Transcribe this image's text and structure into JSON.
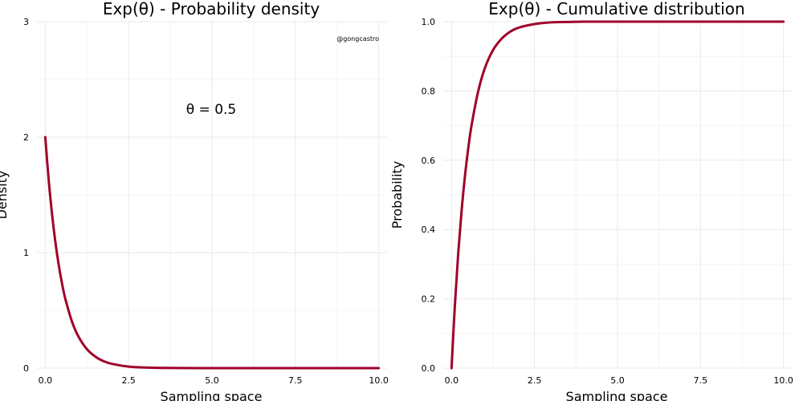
{
  "chart_data": [
    {
      "type": "line",
      "title": "Exp(θ) - Probability density",
      "xlabel": "Sampling space",
      "ylabel": "Density",
      "xlim": [
        -0.25,
        10.25
      ],
      "ylim": [
        0,
        3
      ],
      "xticks": [
        "0.0",
        "2.5",
        "5.0",
        "7.5",
        "10.0"
      ],
      "xtick_values": [
        0,
        2.5,
        5,
        7.5,
        10
      ],
      "yticks": [
        "0",
        "1",
        "2",
        "3"
      ],
      "ytick_values": [
        0,
        1,
        2,
        3
      ],
      "annotation": "θ = 0.5",
      "credit": "@gongcastro",
      "series": [
        {
          "color": "#a0002a",
          "x": [
            0,
            0.1,
            0.2,
            0.3,
            0.4,
            0.5,
            0.6,
            0.8,
            1.0,
            1.25,
            1.5,
            1.75,
            2.0,
            2.5,
            3.0,
            3.5,
            4.0,
            5.0,
            6.0,
            7.0,
            8.0,
            9.0,
            10.0
          ],
          "y": [
            2.0,
            1.637,
            1.341,
            1.098,
            0.899,
            0.736,
            0.602,
            0.404,
            0.271,
            0.164,
            0.1,
            0.06,
            0.037,
            0.013,
            0.005,
            0.002,
            0.001,
            0.0,
            0.0,
            0.0,
            0.0,
            0.0,
            0.0
          ]
        }
      ],
      "grid": true
    },
    {
      "type": "line",
      "title": "Exp(θ) - Cumulative distribution",
      "xlabel": "Sampling space",
      "ylabel": "Probability",
      "xlim": [
        -0.25,
        10.25
      ],
      "ylim": [
        0,
        1
      ],
      "xticks": [
        "0.0",
        "2.5",
        "5.0",
        "7.5",
        "10.0"
      ],
      "xtick_values": [
        0,
        2.5,
        5,
        7.5,
        10
      ],
      "yticks": [
        "0.0",
        "0.2",
        "0.4",
        "0.6",
        "0.8",
        "1.0"
      ],
      "ytick_values": [
        0,
        0.2,
        0.4,
        0.6,
        0.8,
        1.0
      ],
      "series": [
        {
          "color": "#a0002a",
          "x": [
            0,
            0.1,
            0.2,
            0.3,
            0.4,
            0.5,
            0.6,
            0.8,
            1.0,
            1.25,
            1.5,
            1.75,
            2.0,
            2.5,
            3.0,
            3.5,
            4.0,
            5.0,
            6.0,
            7.0,
            8.0,
            9.0,
            10.0
          ],
          "y": [
            0.0,
            0.181,
            0.33,
            0.451,
            0.551,
            0.632,
            0.699,
            0.798,
            0.865,
            0.918,
            0.95,
            0.97,
            0.982,
            0.993,
            0.998,
            0.999,
            1.0,
            1.0,
            1.0,
            1.0,
            1.0,
            1.0,
            1.0
          ]
        }
      ],
      "grid": true
    }
  ]
}
